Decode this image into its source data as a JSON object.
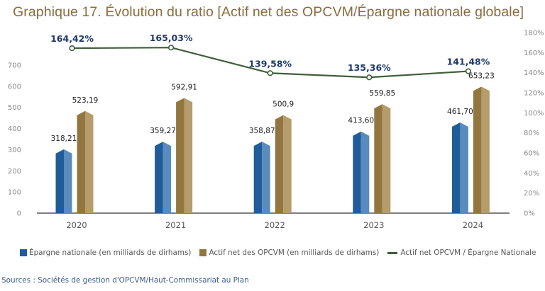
{
  "title": "Graphique 17. Évolution du ratio [Actif net des OPCVM/Épargne nationale globale]",
  "source": "Sources : Sociétés de gestion d'OPCVM/Haut-Commissariat au Plan",
  "colors": {
    "title": "#8a6d3b",
    "epargne_dark": "#1f5c99",
    "epargne_light": "#5a8bbd",
    "actif_dark": "#93763f",
    "actif_light": "#b49c6c",
    "ratio_line": "#3f5e3a",
    "ratio_label": "#1f3a6b"
  },
  "legend": [
    {
      "label": "Épargne nationale (en milliards de dirhams)",
      "type": "box",
      "color": "#1f5c99"
    },
    {
      "label": "Actif net des OPCVM (en milliards de dirhams)",
      "type": "box",
      "color": "#93763f"
    },
    {
      "label": "Actif net OPCVM / Épargne Nationale",
      "type": "line",
      "color": "#3f5e3a"
    }
  ],
  "chart_data": {
    "type": "bar",
    "title": "Graphique 17. Évolution du ratio [Actif net des OPCVM/Épargne nationale globale]",
    "categories": [
      "2020",
      "2021",
      "2022",
      "2023",
      "2024"
    ],
    "series": [
      {
        "name": "Épargne nationale (en milliards de dirhams)",
        "type": "bar",
        "axis": "left",
        "values": [
          318.21,
          359.27,
          358.87,
          413.6,
          461.7
        ],
        "labels": [
          "318,21",
          "359,27",
          "358,87",
          "413,60",
          "461,70"
        ]
      },
      {
        "name": "Actif net des OPCVM (en milliards de dirhams)",
        "type": "bar",
        "axis": "left",
        "values": [
          523.19,
          592.91,
          500.9,
          559.85,
          653.23
        ],
        "labels": [
          "523,19",
          "592,91",
          "500,9",
          "559,85",
          "653,23"
        ]
      },
      {
        "name": "Actif net OPCVM / Épargne Nationale",
        "type": "line",
        "axis": "right",
        "values": [
          164.42,
          165.03,
          139.58,
          135.36,
          141.48
        ],
        "labels": [
          "164,42%",
          "165,03%",
          "139,58%",
          "135,36%",
          "141,48%"
        ]
      }
    ],
    "left_axis": {
      "ticks": [
        "0",
        "100",
        "200",
        "300",
        "400",
        "500",
        "600",
        "700"
      ],
      "range": [
        0,
        700
      ]
    },
    "right_axis": {
      "ticks": [
        "0%",
        "20%",
        "40%",
        "60%",
        "80%",
        "100%",
        "120%",
        "140%",
        "160%",
        "180%"
      ],
      "range": [
        0,
        180
      ]
    },
    "xlabel": "",
    "ylabel": "",
    "grid": false,
    "legend_position": "bottom"
  }
}
